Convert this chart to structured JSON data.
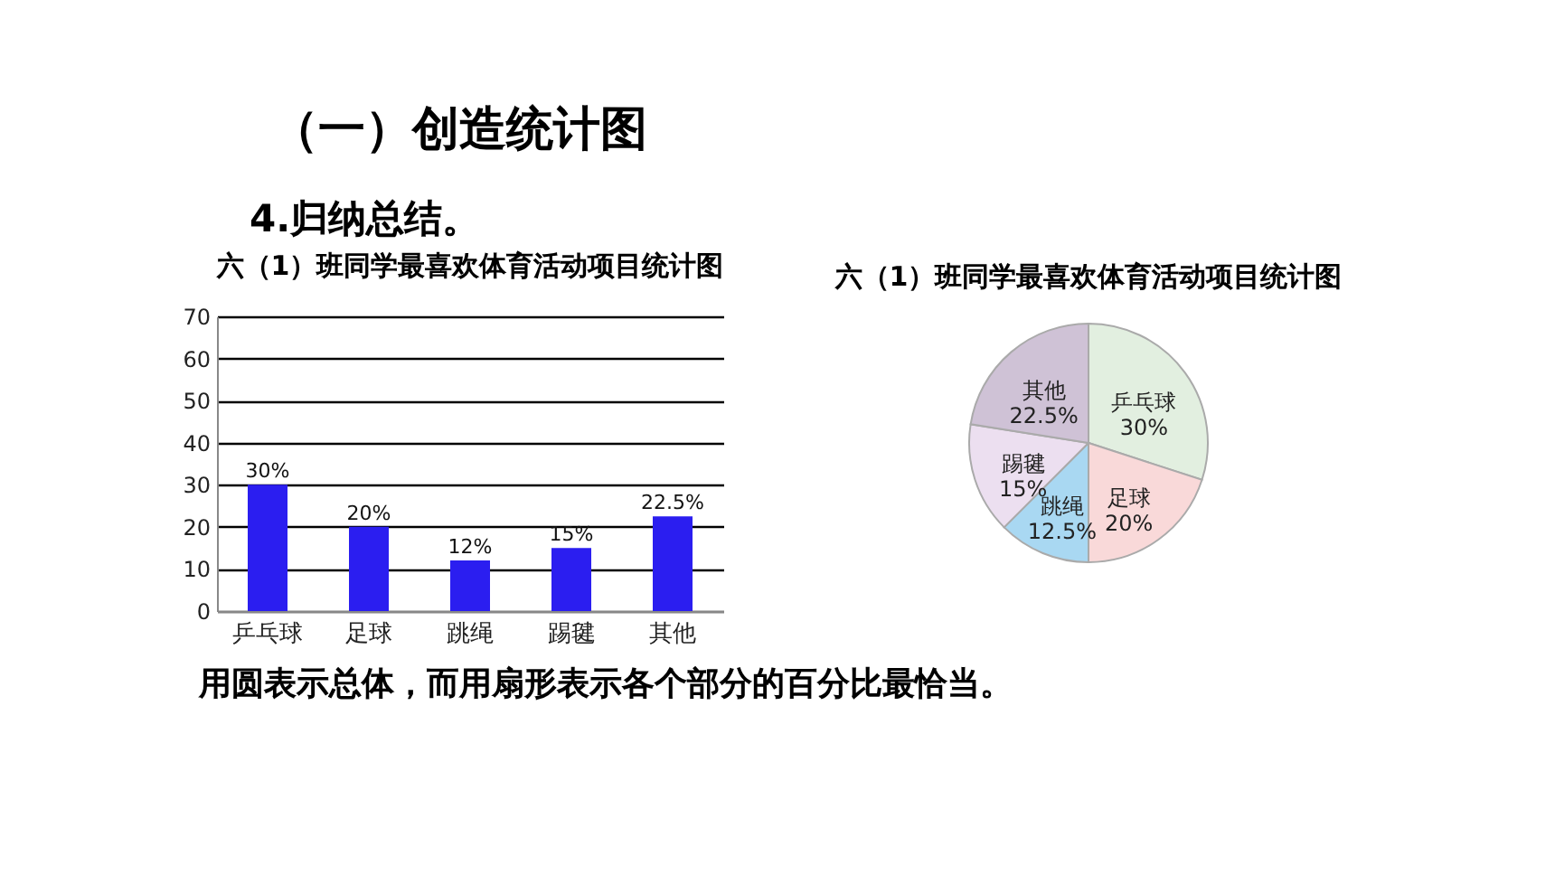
{
  "chart_data": [
    {
      "type": "bar",
      "title": "六（1）班同学最喜欢体育活动项目统计图",
      "categories": [
        "乒乓球",
        "足球",
        "跳绳",
        "踢毽",
        "其他"
      ],
      "values": [
        30,
        20,
        12,
        15,
        22.5
      ],
      "value_labels": [
        "30%",
        "20%",
        "12%",
        "15%",
        "22.5%"
      ],
      "color": "#2b1ef0",
      "ylim": [
        0,
        70
      ],
      "yticks": [
        0,
        10,
        20,
        30,
        40,
        50,
        60,
        70
      ],
      "grid": "y",
      "annotations": [
        "（一）创造统计图",
        "4.归纳总结。",
        "用圆表示总体，而用扇形表示各个部分的百分比最恰当。"
      ]
    },
    {
      "type": "pie",
      "title": "六（1）班同学最喜欢体育活动项目统计图",
      "categories": [
        "乒乓球",
        "足球",
        "跳绳",
        "踢毽",
        "其他"
      ],
      "values": [
        30,
        20,
        12.5,
        15,
        22.5
      ],
      "value_labels": [
        "30%",
        "20%",
        "12.5%",
        "15%",
        "22.5%"
      ],
      "colors": [
        "#e2efe0",
        "#f9d9d9",
        "#a9d8f2",
        "#ecdff0",
        "#cfc2d6"
      ]
    }
  ]
}
